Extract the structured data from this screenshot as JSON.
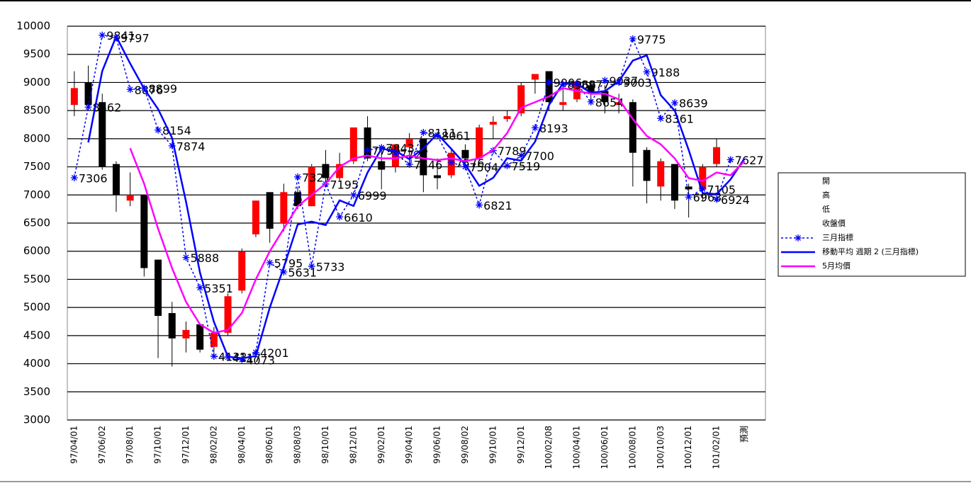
{
  "chart_data": {
    "type": "candlestick",
    "categories": [
      "97/04/01",
      null,
      "97/06/02",
      null,
      "97/08/01",
      null,
      "97/10/01",
      null,
      "97/12/01",
      null,
      "98/02/02",
      null,
      "98/04/01",
      null,
      "98/06/01",
      null,
      "98/08/03",
      null,
      "98/10/01",
      null,
      "98/12/01",
      null,
      "99/02/01",
      null,
      "99/04/01",
      null,
      "99/06/01",
      null,
      "99/08/02",
      null,
      "99/10/01",
      null,
      "99/12/01",
      null,
      "100/02/08",
      null,
      "100/04/01",
      null,
      "100/06/01",
      null,
      "100/08/01",
      null,
      "100/10/03",
      null,
      "100/12/01",
      null,
      "101/02/01",
      null,
      "預測",
      null
    ],
    "ohlc_names": [
      "開",
      "高",
      "低",
      "收盤價"
    ],
    "up_color": "#ff0000",
    "down_color": "#000000",
    "open": [
      8600,
      9000,
      8650,
      7550,
      6900,
      7000,
      5850,
      4900,
      4450,
      4700,
      4300,
      4550,
      5300,
      6300,
      7050,
      6500,
      7050,
      6800,
      7550,
      7300,
      7600,
      8200,
      7600,
      7500,
      7850,
      8000,
      7350,
      7350,
      7800,
      7650,
      8250,
      8350,
      8450,
      9050,
      9200,
      8600,
      8700,
      8950,
      8850,
      8600,
      8650,
      7800,
      7150,
      7550,
      7150,
      7100,
      7550,
      null,
      null,
      null
    ],
    "high": [
      9200,
      9300,
      8800,
      7600,
      7400,
      7000,
      5850,
      5100,
      4750,
      4700,
      4650,
      5250,
      6050,
      6900,
      7050,
      7200,
      7150,
      7550,
      7800,
      7750,
      8200,
      8400,
      7800,
      7900,
      8100,
      8000,
      7650,
      7800,
      7900,
      8250,
      8400,
      8500,
      9000,
      9150,
      9200,
      8900,
      9000,
      9000,
      8950,
      8800,
      8700,
      7850,
      7650,
      7550,
      7200,
      7550,
      8000,
      null,
      null,
      null
    ],
    "low": [
      8400,
      8500,
      7450,
      6700,
      6800,
      5550,
      4100,
      3950,
      4200,
      4200,
      4200,
      4500,
      5250,
      6250,
      6150,
      6350,
      6750,
      6800,
      7200,
      7250,
      7550,
      7600,
      7100,
      7400,
      7500,
      7050,
      7100,
      7300,
      7500,
      7600,
      8000,
      8300,
      8400,
      8800,
      8500,
      8500,
      8650,
      8600,
      8450,
      8450,
      7150,
      6850,
      6900,
      6750,
      6600,
      6900,
      7500,
      null,
      null,
      null
    ],
    "close": [
      8900,
      8600,
      7500,
      7000,
      7000,
      5700,
      4850,
      4450,
      4600,
      4250,
      4550,
      5200,
      6000,
      6900,
      6400,
      7050,
      6800,
      7500,
      7300,
      7550,
      8200,
      7650,
      7450,
      7900,
      8000,
      7350,
      7300,
      7750,
      7650,
      8200,
      8300,
      8400,
      8950,
      9150,
      8650,
      8650,
      9000,
      8800,
      8650,
      8650,
      7750,
      7250,
      7600,
      6900,
      7100,
      7500,
      7850,
      null,
      null,
      null
    ],
    "series": [
      {
        "name": "三月指標",
        "color": "#0000ff",
        "style": "dotted",
        "marker": "star",
        "labels": true,
        "values": [
          7306,
          8562,
          9841,
          9797,
          8876,
          8899,
          8154,
          7874,
          5888,
          5351,
          4132,
          4117,
          4073,
          4201,
          5795,
          5631,
          7321,
          5733,
          7195,
          6610,
          6999,
          7796,
          7843,
          7727,
          7546,
          8111,
          8061,
          7576,
          7504,
          6821,
          7789,
          7519,
          7700,
          8193,
          9006,
          8966,
          8977,
          8654,
          9037,
          9003,
          9775,
          9188,
          8361,
          8639,
          6963,
          7105,
          6924,
          7627,
          null,
          null
        ]
      },
      {
        "name": "移動平均 週期 2 (三月指標)",
        "color": "#0000ff",
        "style": "solid",
        "values": [
          null,
          7934,
          9202,
          9819,
          9337,
          8888,
          8527,
          8014,
          6881,
          5620,
          4742,
          4125,
          4095,
          4137,
          4998,
          5713,
          6476,
          6527,
          6464,
          6903,
          6805,
          7398,
          7820,
          7785,
          7637,
          7829,
          8086,
          7819,
          7540,
          7163,
          7305,
          7654,
          7610,
          7947,
          8600,
          8986,
          8972,
          8816,
          8846,
          9020,
          9389,
          9482,
          8775,
          8500,
          7801,
          7034,
          7015,
          7276,
          7650,
          null
        ]
      },
      {
        "name": "5月均價",
        "color": "#ff00ff",
        "style": "solid",
        "values": [
          null,
          null,
          null,
          null,
          7830,
          7200,
          6400,
          5700,
          5100,
          4700,
          4550,
          4600,
          4900,
          5500,
          6000,
          6400,
          6800,
          7000,
          7200,
          7500,
          7650,
          7700,
          7650,
          7650,
          7700,
          7650,
          7620,
          7650,
          7600,
          7650,
          7800,
          8100,
          8550,
          8650,
          8750,
          8900,
          8850,
          8800,
          8800,
          8700,
          8350,
          8050,
          7900,
          7650,
          7300,
          7250,
          7400,
          7350,
          7600,
          null
        ]
      }
    ],
    "ylim": [
      3000,
      10000
    ],
    "yticks": [
      3000,
      3500,
      4000,
      4500,
      5000,
      5500,
      6000,
      6500,
      7000,
      7500,
      8000,
      8500,
      9000,
      9500,
      10000
    ],
    "grid": true
  }
}
